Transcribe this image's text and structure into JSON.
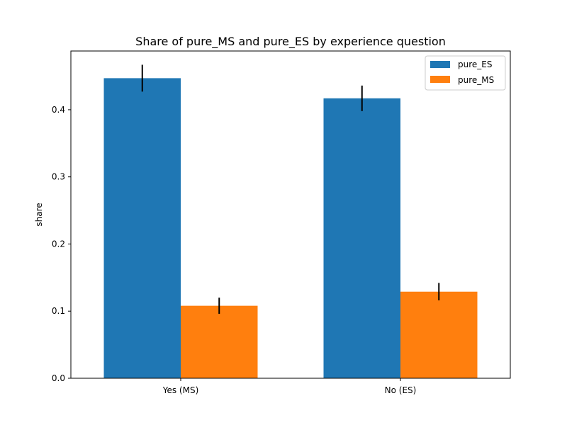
{
  "chart_data": {
    "type": "bar",
    "title": "Share of pure_MS and pure_ES by experience question",
    "xlabel": "",
    "ylabel": "share",
    "ylim": [
      0,
      0.4875
    ],
    "yticks": [
      0.0,
      0.1,
      0.2,
      0.3,
      0.4
    ],
    "ytick_labels": [
      "0.0",
      "0.1",
      "0.2",
      "0.3",
      "0.4"
    ],
    "categories": [
      "Yes (MS)",
      "No (ES)"
    ],
    "series": [
      {
        "name": "pure_ES",
        "color": "#1f77b4",
        "values": [
          0.447,
          0.417
        ],
        "error": [
          0.02,
          0.019
        ]
      },
      {
        "name": "pure_MS",
        "color": "#ff7f0e",
        "values": [
          0.108,
          0.129
        ],
        "error": [
          0.012,
          0.013
        ]
      }
    ],
    "legend_position": "top-right",
    "grid": false
  }
}
